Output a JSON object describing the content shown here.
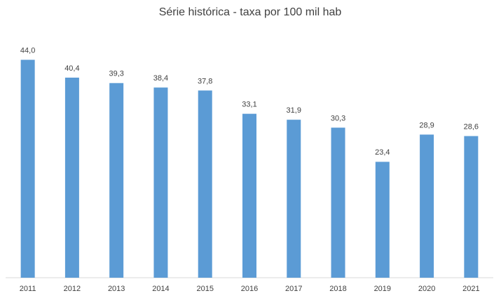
{
  "chart_data": {
    "type": "bar",
    "title": "Série histórica - taxa por 100 mil hab",
    "categories": [
      "2011",
      "2012",
      "2013",
      "2014",
      "2015",
      "2016",
      "2017",
      "2018",
      "2019",
      "2020",
      "2021"
    ],
    "values": [
      44.0,
      40.4,
      39.3,
      38.4,
      37.8,
      33.1,
      31.9,
      30.3,
      23.4,
      28.9,
      28.6
    ],
    "value_labels": [
      "44,0",
      "40,4",
      "39,3",
      "38,4",
      "37,8",
      "33,1",
      "31,9",
      "30,3",
      "23,4",
      "28,9",
      "28,6"
    ],
    "color": "#5b9bd5",
    "ylim": [
      0,
      50
    ]
  }
}
